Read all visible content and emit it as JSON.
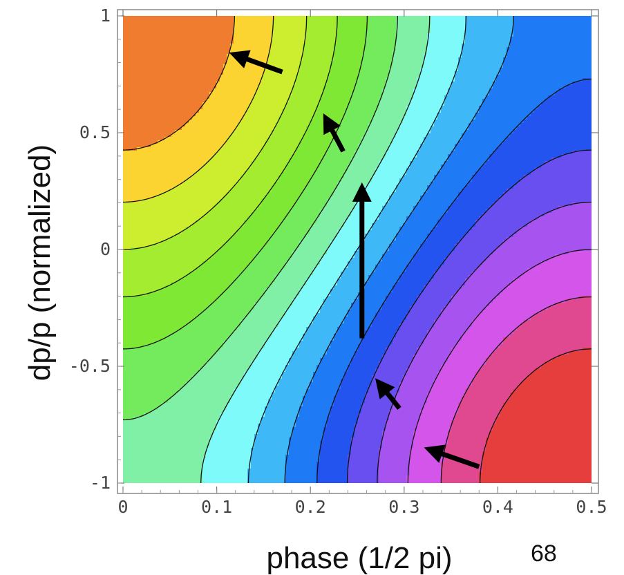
{
  "chart_data": {
    "type": "contour",
    "xlabel": "phase (1/2 pi)",
    "ylabel": "dp/p (normalized)",
    "xlim": [
      0,
      0.5
    ],
    "ylim": [
      -1,
      1
    ],
    "x_ticks": [
      0,
      0.1,
      0.2,
      0.3,
      0.4,
      0.5
    ],
    "y_ticks": [
      -1,
      -0.5,
      0,
      0.5,
      1
    ],
    "x_tick_labels": [
      "0",
      "0.1",
      "0.2",
      "0.3",
      "0.4",
      "0.5"
    ],
    "y_tick_labels": [
      "-1",
      "-0.5",
      "0",
      "0.5",
      "1"
    ],
    "contour_levels": [
      -1.4,
      -1.2,
      -1.0,
      -0.8,
      -0.6,
      -0.4,
      -0.2,
      0.0,
      0.2,
      0.4,
      0.6,
      0.8,
      1.0,
      1.2,
      1.4
    ],
    "colormap": [
      "#e5413c",
      "#f07c30",
      "#fbd431",
      "#cdee2f",
      "#a4ec2f",
      "#7fe835",
      "#74ea5d",
      "#7ff0a6",
      "#7ffafa",
      "#3fb8f8",
      "#1f7bf5",
      "#2454f0",
      "#6a4ff0",
      "#a653ef",
      "#d355ea",
      "#e0498f",
      "#e53e3c"
    ],
    "arrows": [
      {
        "from": [
          0.38,
          -0.93
        ],
        "to": [
          0.33,
          -0.86
        ]
      },
      {
        "from": [
          0.295,
          -0.68
        ],
        "to": [
          0.275,
          -0.58
        ]
      },
      {
        "from": [
          0.255,
          -0.38
        ],
        "to": [
          0.255,
          0.25
        ]
      },
      {
        "from": [
          0.235,
          0.42
        ],
        "to": [
          0.218,
          0.55
        ]
      },
      {
        "from": [
          0.17,
          0.76
        ],
        "to": [
          0.122,
          0.83
        ]
      }
    ],
    "grid": false
  },
  "page_number": "68"
}
